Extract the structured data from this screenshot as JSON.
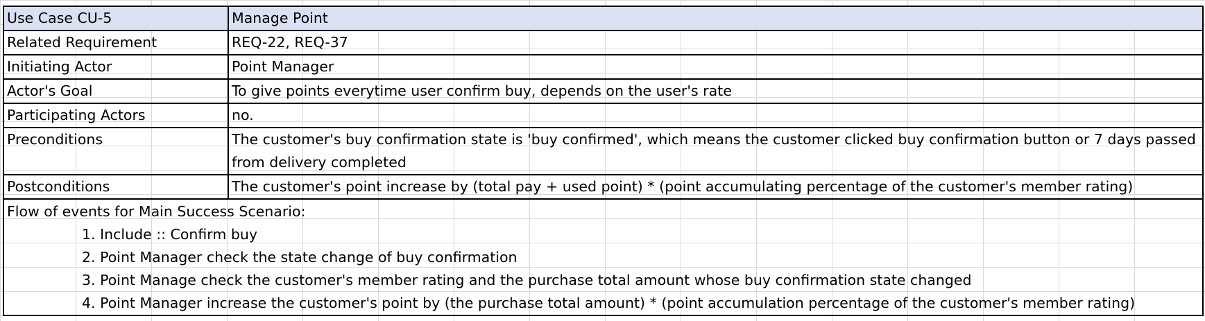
{
  "rows": [
    {
      "label": "Use Case CU-5",
      "value": "Manage Point"
    },
    {
      "label": "Related Requirement",
      "value": "REQ-22, REQ-37"
    },
    {
      "label": "Initiating Actor",
      "value": "Point Manager"
    },
    {
      "label": "Actor's Goal",
      "value": "To give points everytime user confirm buy, depends on the user's rate"
    },
    {
      "label": "Participating Actors",
      "value": "no."
    },
    {
      "label": "Preconditions",
      "value": "The customer's buy confirmation state is 'buy confirmed', which means the customer clicked buy confirmation button or 7 days passed from delivery completed"
    },
    {
      "label": "Postconditions",
      "value": "The customer's point increase by (total pay + used point) * (point accumulating percentage of the customer's member rating)"
    }
  ],
  "flow": {
    "title": "Flow of events for Main Success Scenario:",
    "steps": [
      "1. Include :: Confirm buy",
      "2. Point Manager check the state change of buy confirmation",
      "3. Point Manage check the customer's member rating and the purchase total amount whose buy confirmation state changed",
      "4. Point Manager increase the customer's point by (the purchase total amount) * (point accumulation percentage of the customer's member rating)"
    ]
  },
  "colors": {
    "header_fill": "#d9e1f2",
    "border": "#000000",
    "gridline": "#d9d9d9"
  }
}
